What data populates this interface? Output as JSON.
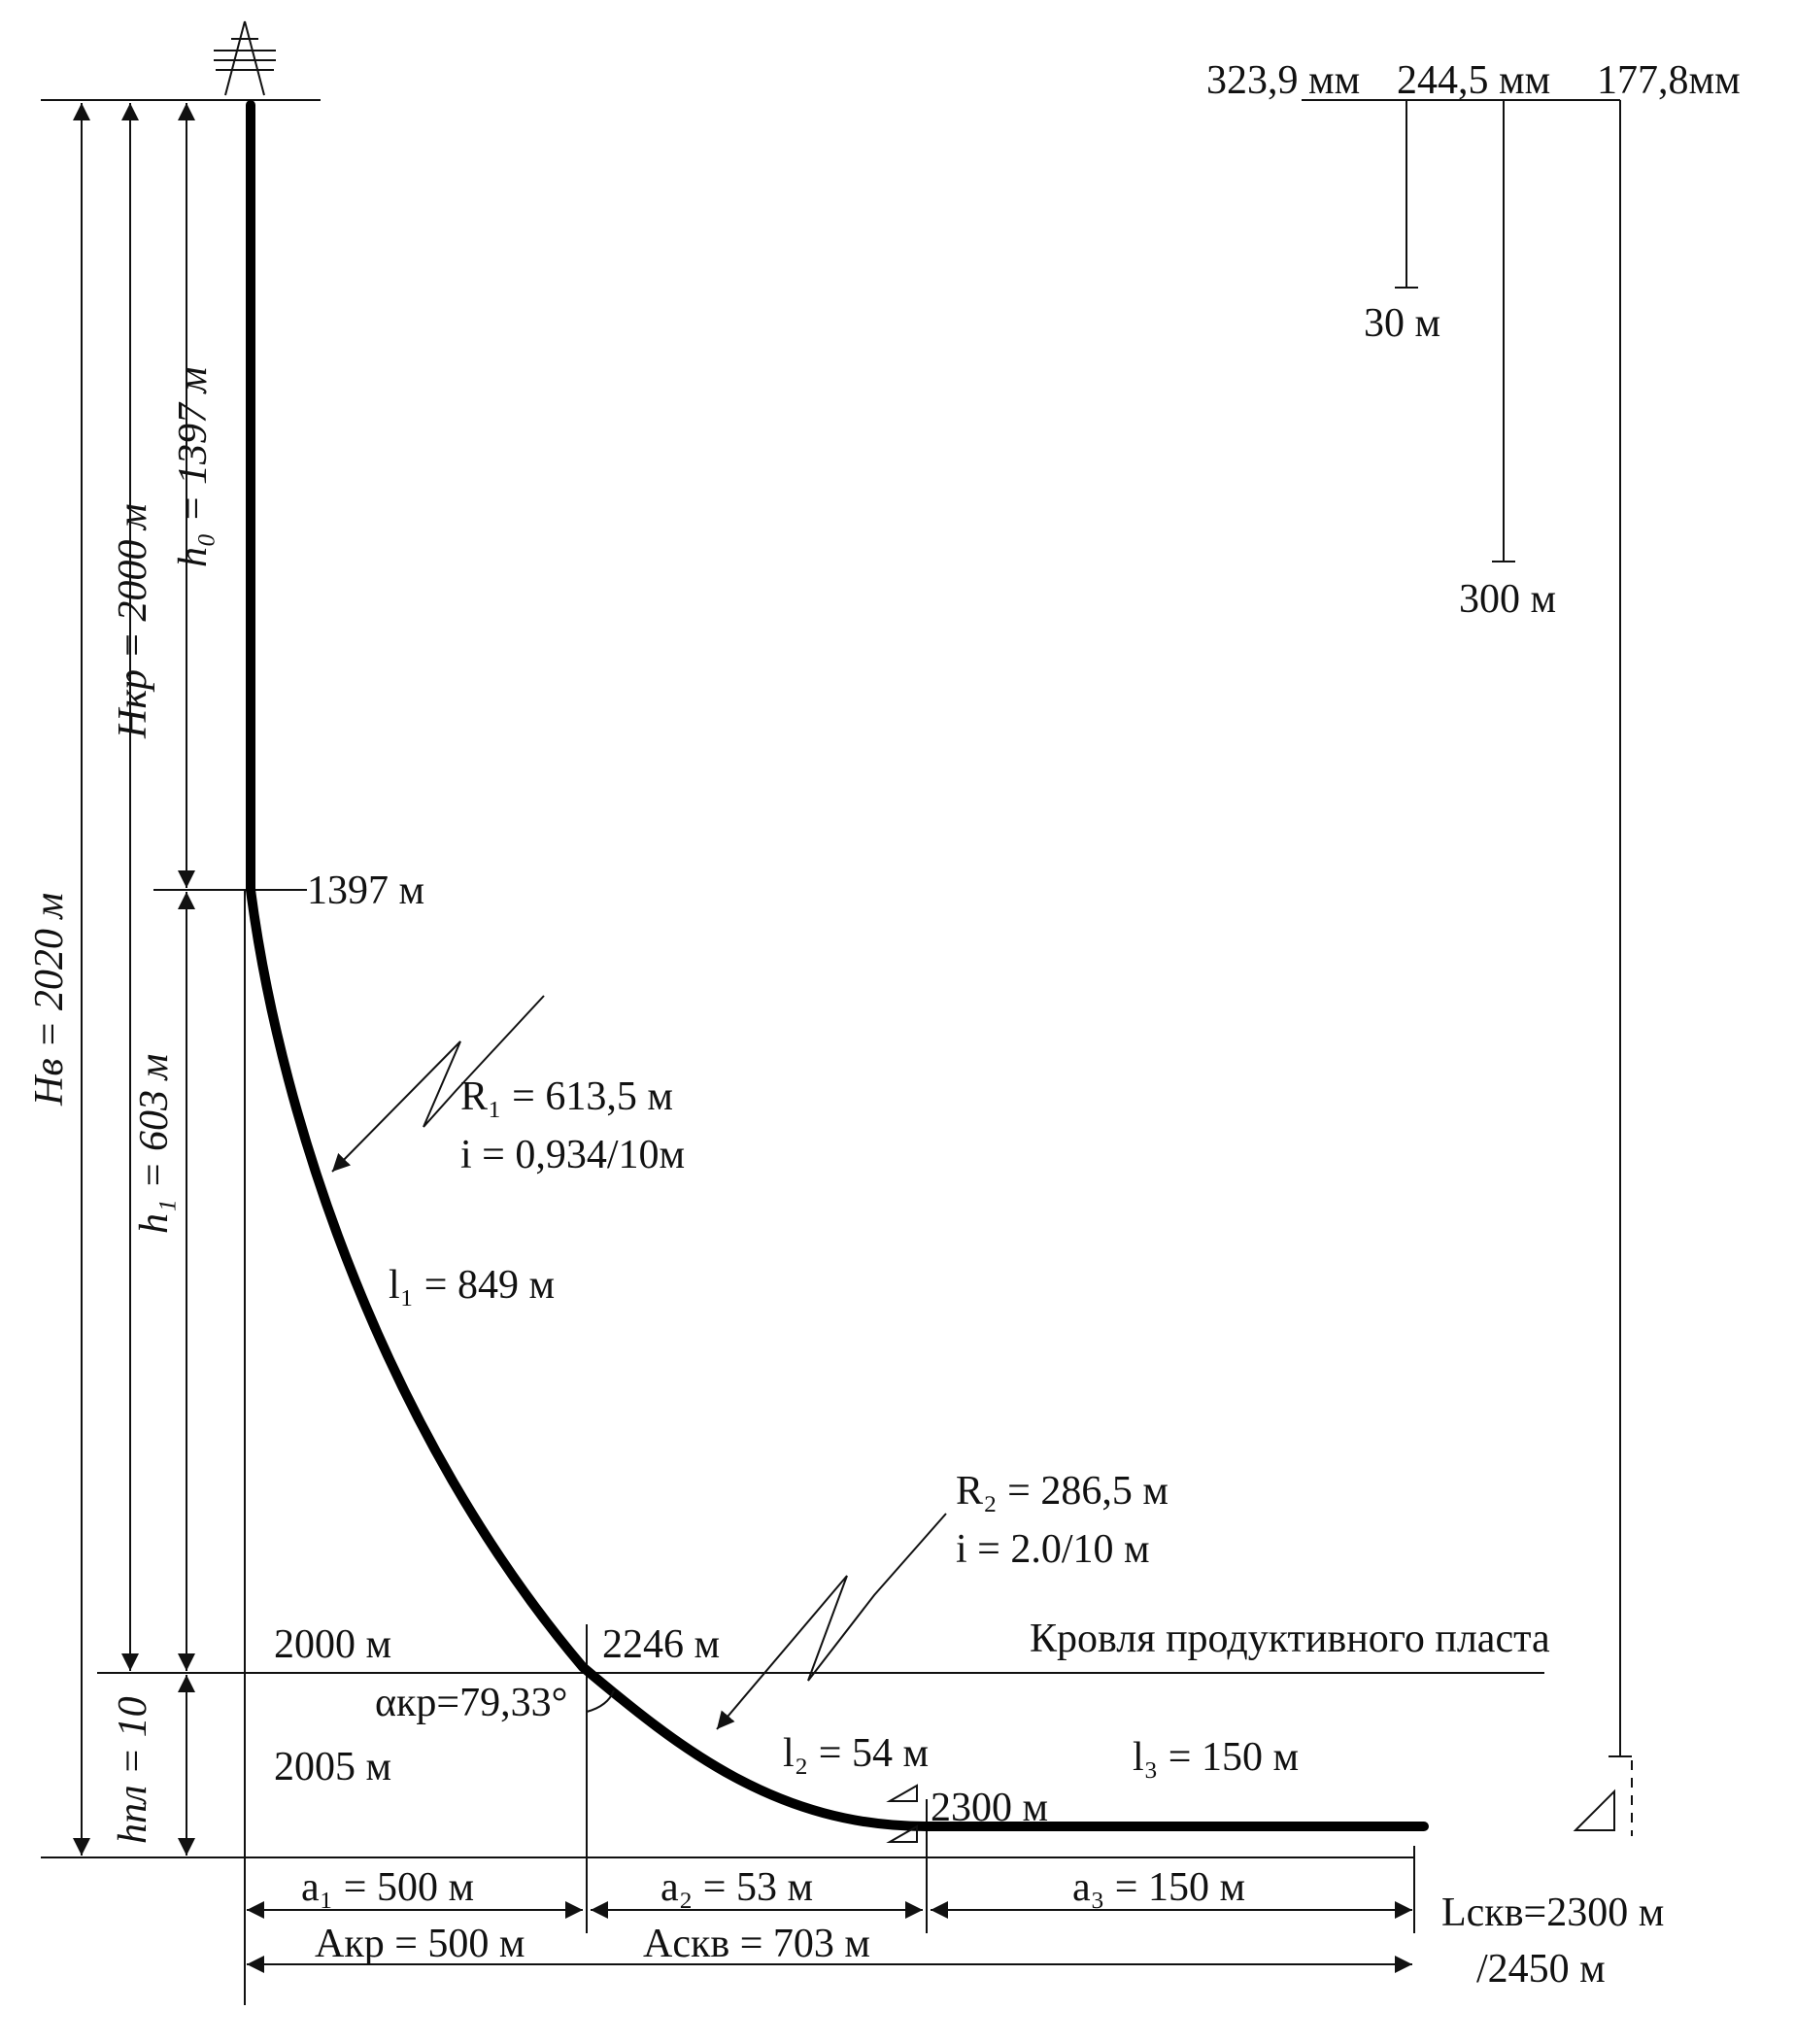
{
  "diagram": {
    "casing": {
      "d1": "323,9 мм",
      "d2": "244,5 мм",
      "d3": "177,8мм",
      "depth_a": "30 м",
      "depth_b": "300 м"
    },
    "dims": {
      "h0": "h₀ = 1397 м",
      "hkr": "Hкр = 2000 м",
      "hv": "Hв = 2020 м",
      "h1": "h₁ = 603 м",
      "hpl": "hпл = 10"
    },
    "points": {
      "p1397": "1397 м",
      "p2000": "2000 м",
      "p2246": "2246 м",
      "p2005": "2005 м",
      "p2300": "2300 м",
      "alpha": "αкр=79,33°"
    },
    "segments": {
      "r1": "R₁  = 613,5 м",
      "i1": "i = 0,934/10м",
      "l1": "l₁ = 849 м",
      "r2": "R₂ = 286,5 м",
      "i2": "i = 2.0/10 м",
      "l2": "l₂ = 54 м",
      "l3": "l₃ = 150 м"
    },
    "formation_roof": "Кровля продуктивного пласта",
    "horizontal": {
      "a1": "a₁ = 500 м",
      "a2": "a₂ = 53 м",
      "a3": "a₃ = 150 м",
      "akr": "Aкр = 500 м",
      "askv": "Aскв = 703 м",
      "lskv_1": "Lскв=2300 м",
      "lskv_2": "/2450 м"
    }
  }
}
